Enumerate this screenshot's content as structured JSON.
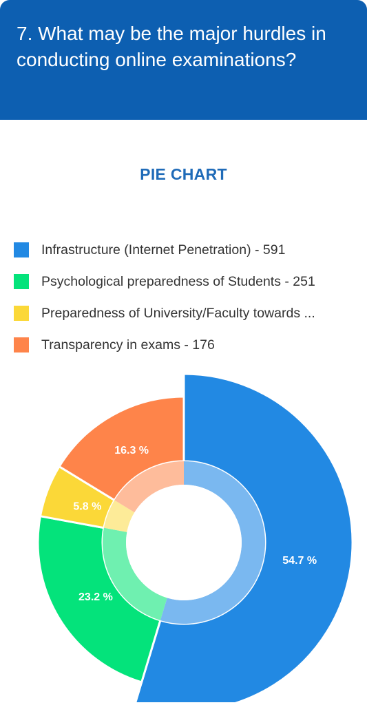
{
  "header": {
    "question": "7. What may be the major hurdles in conducting online examinations?"
  },
  "chart_data": {
    "type": "pie",
    "title": "PIE CHART",
    "style": "donut",
    "legend_position": "top",
    "categories": [
      "Infrastructure (Internet Penetration)",
      "Psychological preparedness of Students",
      "Preparedness of University/Faculty towards ...",
      "Transparency in exams"
    ],
    "values": [
      591,
      251,
      63,
      176
    ],
    "percent_labels": [
      "54.7 %",
      "23.2 %",
      "5.8 %",
      "16.3 %"
    ],
    "colors": [
      "#2289e3",
      "#04e37b",
      "#fbd838",
      "#fe844a"
    ],
    "inner_colors": [
      "#7ab8f0",
      "#6ff0b0",
      "#fdeb98",
      "#febc9b"
    ],
    "legend": [
      "Infrastructure (Internet Penetration) - 591",
      "Psychological preparedness of Students - 251",
      "Preparedness of University/Faculty towards ...",
      "Transparency in exams - 176"
    ],
    "highlighted_slice": 0
  }
}
